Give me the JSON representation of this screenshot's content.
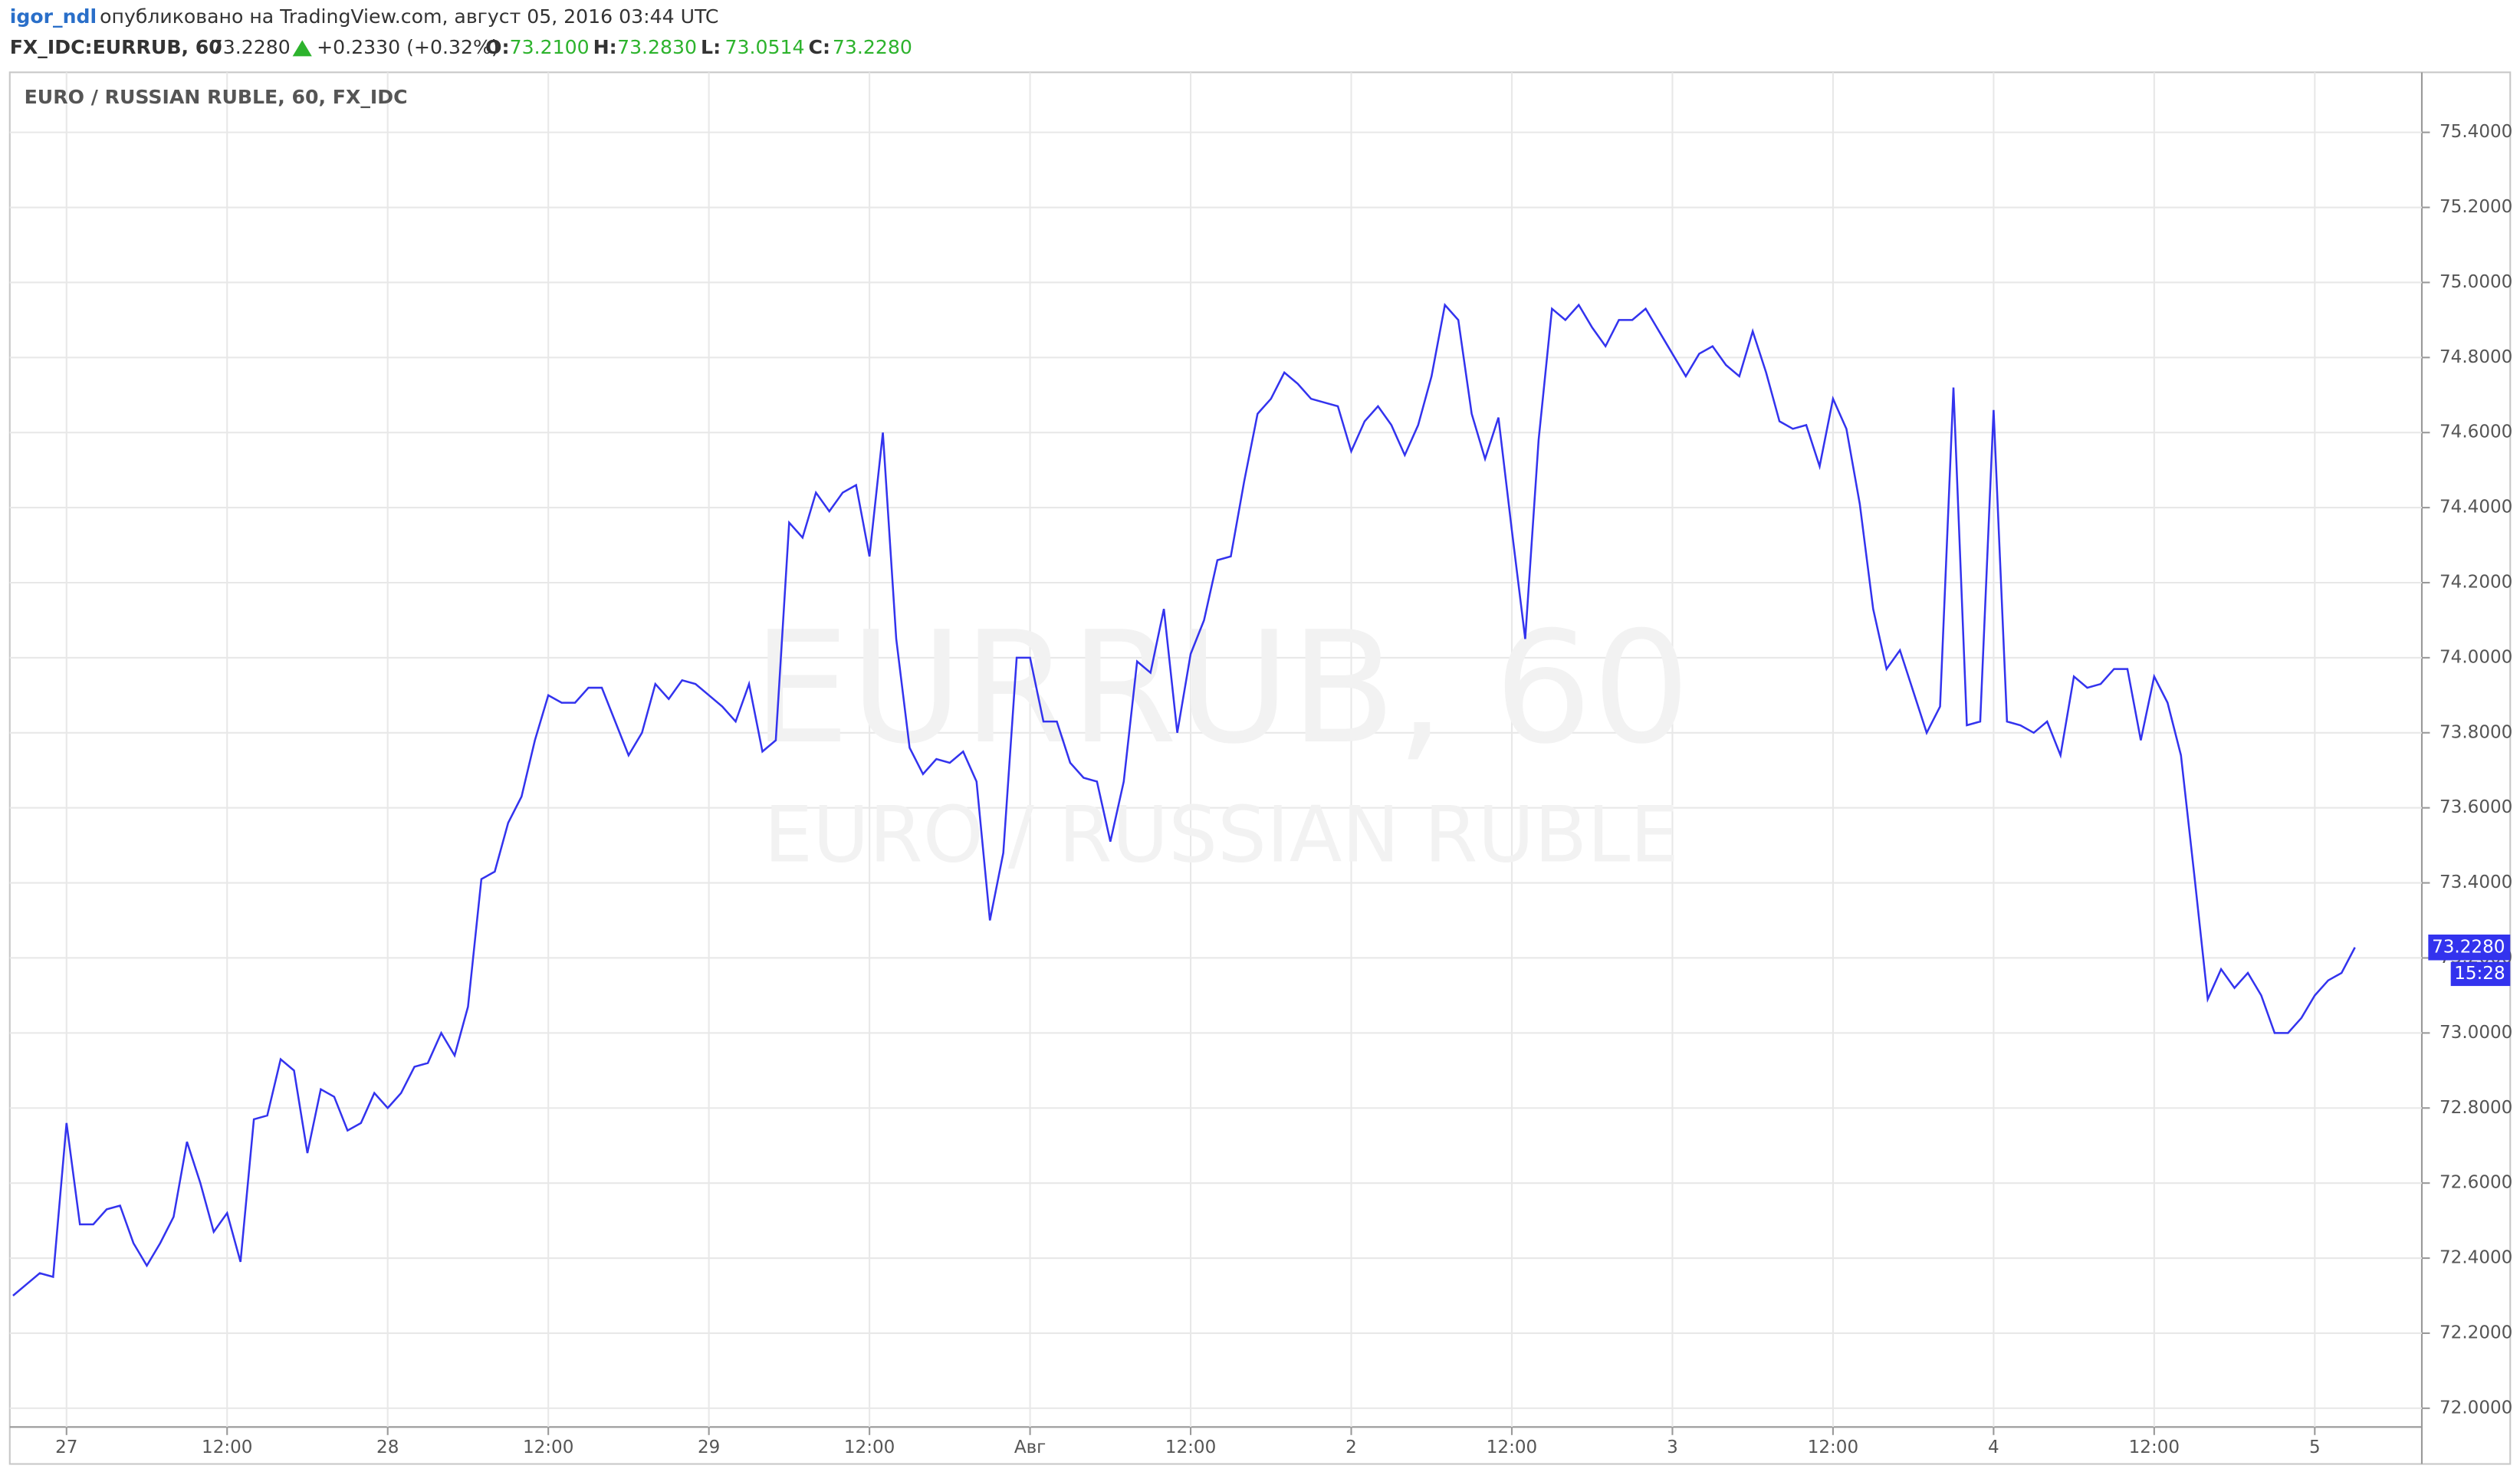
{
  "header": {
    "user": "igor_ndl",
    "published": "опубликовано на TradingView.com, август 05, 2016 03:44 UTC"
  },
  "chart_data": {
    "type": "line",
    "title": "EURO / RUSSIAN RUBLE, 60, FX_IDC",
    "symbol": "FX_IDC:EURRUB, 60",
    "last": "73.2280",
    "change": "+0.2330 (+0.32%)",
    "ohlc": [
      {
        "label": "O:",
        "value": "73.2100"
      },
      {
        "label": "H:",
        "value": "73.2830"
      },
      {
        "label": "L:",
        "value": "73.0514"
      },
      {
        "label": "C:",
        "value": "73.2280"
      }
    ],
    "watermark": "EURRUB, 60",
    "watermark_subtitle": "EURO / RUSSIAN RUBLE",
    "price_label": "73.2280",
    "time_label": "15:28",
    "grid": true,
    "series": [
      {
        "color": "#3333ee",
        "values": [
          72.3,
          72.33,
          72.36,
          72.35,
          72.76,
          72.49,
          72.49,
          72.53,
          72.54,
          72.44,
          72.38,
          72.44,
          72.51,
          72.71,
          72.6,
          72.47,
          72.52,
          72.39,
          72.77,
          72.78,
          72.93,
          72.9,
          72.68,
          72.85,
          72.83,
          72.74,
          72.76,
          72.84,
          72.8,
          72.84,
          72.91,
          72.92,
          73.0,
          72.94,
          73.07,
          73.41,
          73.43,
          73.56,
          73.63,
          73.78,
          73.9,
          73.88,
          73.88,
          73.92,
          73.92,
          73.83,
          73.74,
          73.8,
          73.93,
          73.89,
          73.94,
          73.93,
          73.9,
          73.87,
          73.83,
          73.93,
          73.75,
          73.78,
          74.36,
          74.32,
          74.44,
          74.39,
          74.44,
          74.46,
          74.27,
          74.6,
          74.05,
          73.76,
          73.69,
          73.73,
          73.72,
          73.75,
          73.67,
          73.3,
          73.48,
          74.0,
          74.0,
          73.83,
          73.83,
          73.72,
          73.68,
          73.67,
          73.51,
          73.67,
          73.99,
          73.96,
          74.13,
          73.8,
          74.01,
          74.1,
          74.26,
          74.27,
          74.47,
          74.65,
          74.69,
          74.76,
          74.73,
          74.69,
          74.68,
          74.67,
          74.55,
          74.63,
          74.67,
          74.62,
          74.54,
          74.62,
          74.75,
          74.94,
          74.9,
          74.65,
          74.53,
          74.64,
          74.34,
          74.05,
          74.58,
          74.93,
          74.9,
          74.94,
          74.88,
          74.83,
          74.9,
          74.9,
          74.93,
          74.87,
          74.81,
          74.75,
          74.81,
          74.83,
          74.78,
          74.75,
          74.87,
          74.76,
          74.63,
          74.61,
          74.62,
          74.51,
          74.69,
          74.61,
          74.41,
          74.13,
          73.97,
          74.02,
          73.91,
          73.8,
          73.87,
          74.72,
          73.82,
          73.83,
          74.66,
          73.83,
          73.82,
          73.8,
          73.83,
          73.74,
          73.95,
          73.92,
          73.93,
          73.97,
          73.97,
          73.78,
          73.95,
          73.88,
          73.74,
          73.42,
          73.09,
          73.17,
          73.12,
          73.16,
          73.1,
          73.0,
          73.0,
          73.04,
          73.1,
          73.14,
          73.16,
          73.228
        ]
      }
    ],
    "xlim": [
      0,
      180
    ],
    "xticks": [
      {
        "value": 4,
        "label": "27"
      },
      {
        "value": 16,
        "label": "12:00"
      },
      {
        "value": 28,
        "label": "28"
      },
      {
        "value": 40,
        "label": "12:00"
      },
      {
        "value": 52,
        "label": "29"
      },
      {
        "value": 64,
        "label": "12:00"
      },
      {
        "value": 76,
        "label": "Авг"
      },
      {
        "value": 88,
        "label": "12:00"
      },
      {
        "value": 100,
        "label": "2"
      },
      {
        "value": 112,
        "label": "12:00"
      },
      {
        "value": 124,
        "label": "3"
      },
      {
        "value": 136,
        "label": "12:00"
      },
      {
        "value": 148,
        "label": "4"
      },
      {
        "value": 160,
        "label": "12:00"
      },
      {
        "value": 172,
        "label": "5"
      }
    ],
    "ylim": [
      71.95,
      75.56
    ],
    "yticks": [
      {
        "value": 72.0,
        "label": "72.0000"
      },
      {
        "value": 72.2,
        "label": "72.2000"
      },
      {
        "value": 72.4,
        "label": "72.4000"
      },
      {
        "value": 72.6,
        "label": "72.6000"
      },
      {
        "value": 72.8,
        "label": "72.8000"
      },
      {
        "value": 73.0,
        "label": "73.0000"
      },
      {
        "value": 73.2,
        "label": "73.2000"
      },
      {
        "value": 73.4,
        "label": "73.4000"
      },
      {
        "value": 73.6,
        "label": "73.6000"
      },
      {
        "value": 73.8,
        "label": "73.8000"
      },
      {
        "value": 74.0,
        "label": "74.0000"
      },
      {
        "value": 74.2,
        "label": "74.2000"
      },
      {
        "value": 74.4,
        "label": "74.4000"
      },
      {
        "value": 74.6,
        "label": "74.6000"
      },
      {
        "value": 74.8,
        "label": "74.8000"
      },
      {
        "value": 75.0,
        "label": "75.0000"
      },
      {
        "value": 75.2,
        "label": "75.2000"
      },
      {
        "value": 75.4,
        "label": "75.4000"
      }
    ]
  }
}
